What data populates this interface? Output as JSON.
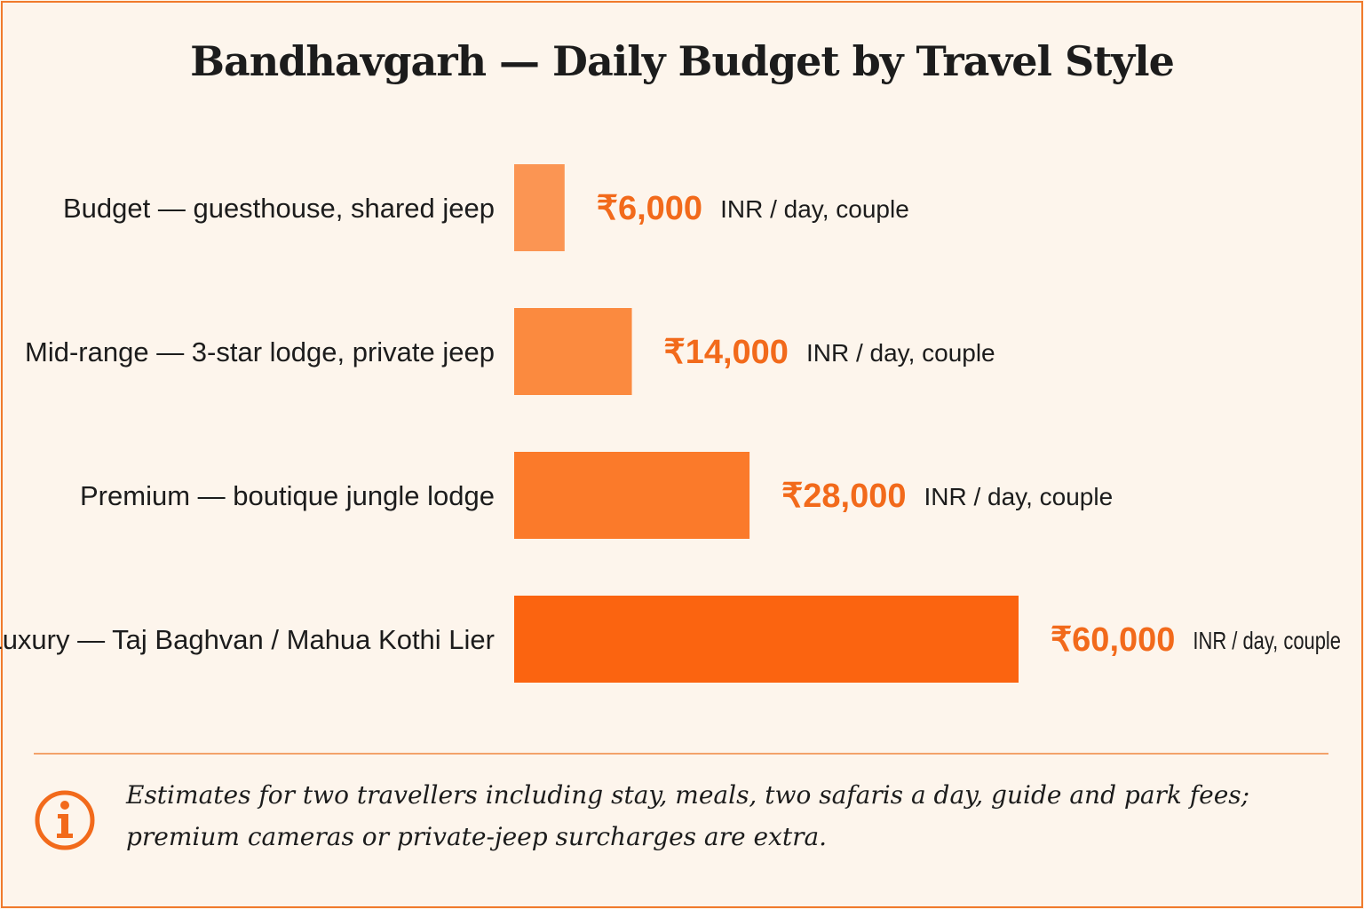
{
  "title": "Bandhavgarh — Daily Budget by Travel Style",
  "chart_data": {
    "type": "bar",
    "orientation": "horizontal",
    "title": "Bandhavgarh — Daily Budget by Travel Style",
    "categories": [
      "Budget — guesthouse, shared jeep",
      "Mid-range — 3-star lodge, private jeep",
      "Premium — boutique jungle lodge",
      "Luxury — Taj Baghvan / Mahua Kothi Lier"
    ],
    "values": [
      6000,
      14000,
      28000,
      60000
    ],
    "value_labels": [
      "₹6,000",
      "₹14,000",
      "₹28,000",
      "₹60,000"
    ],
    "unit_label": "INR / day, couple",
    "colors": [
      "#fb9553",
      "#fb8a3f",
      "#fb7a2a",
      "#fb6410"
    ],
    "xlabel": "",
    "ylabel": "",
    "grid": false,
    "legend": "none"
  },
  "footnote": {
    "line1": "Estimates for two travellers including stay, meals, two safaris a day, guide and park fees;",
    "line2": "premium cameras or private-jeep surcharges are extra."
  },
  "accent_color": "#f26a1b",
  "info_icon": "info-icon"
}
